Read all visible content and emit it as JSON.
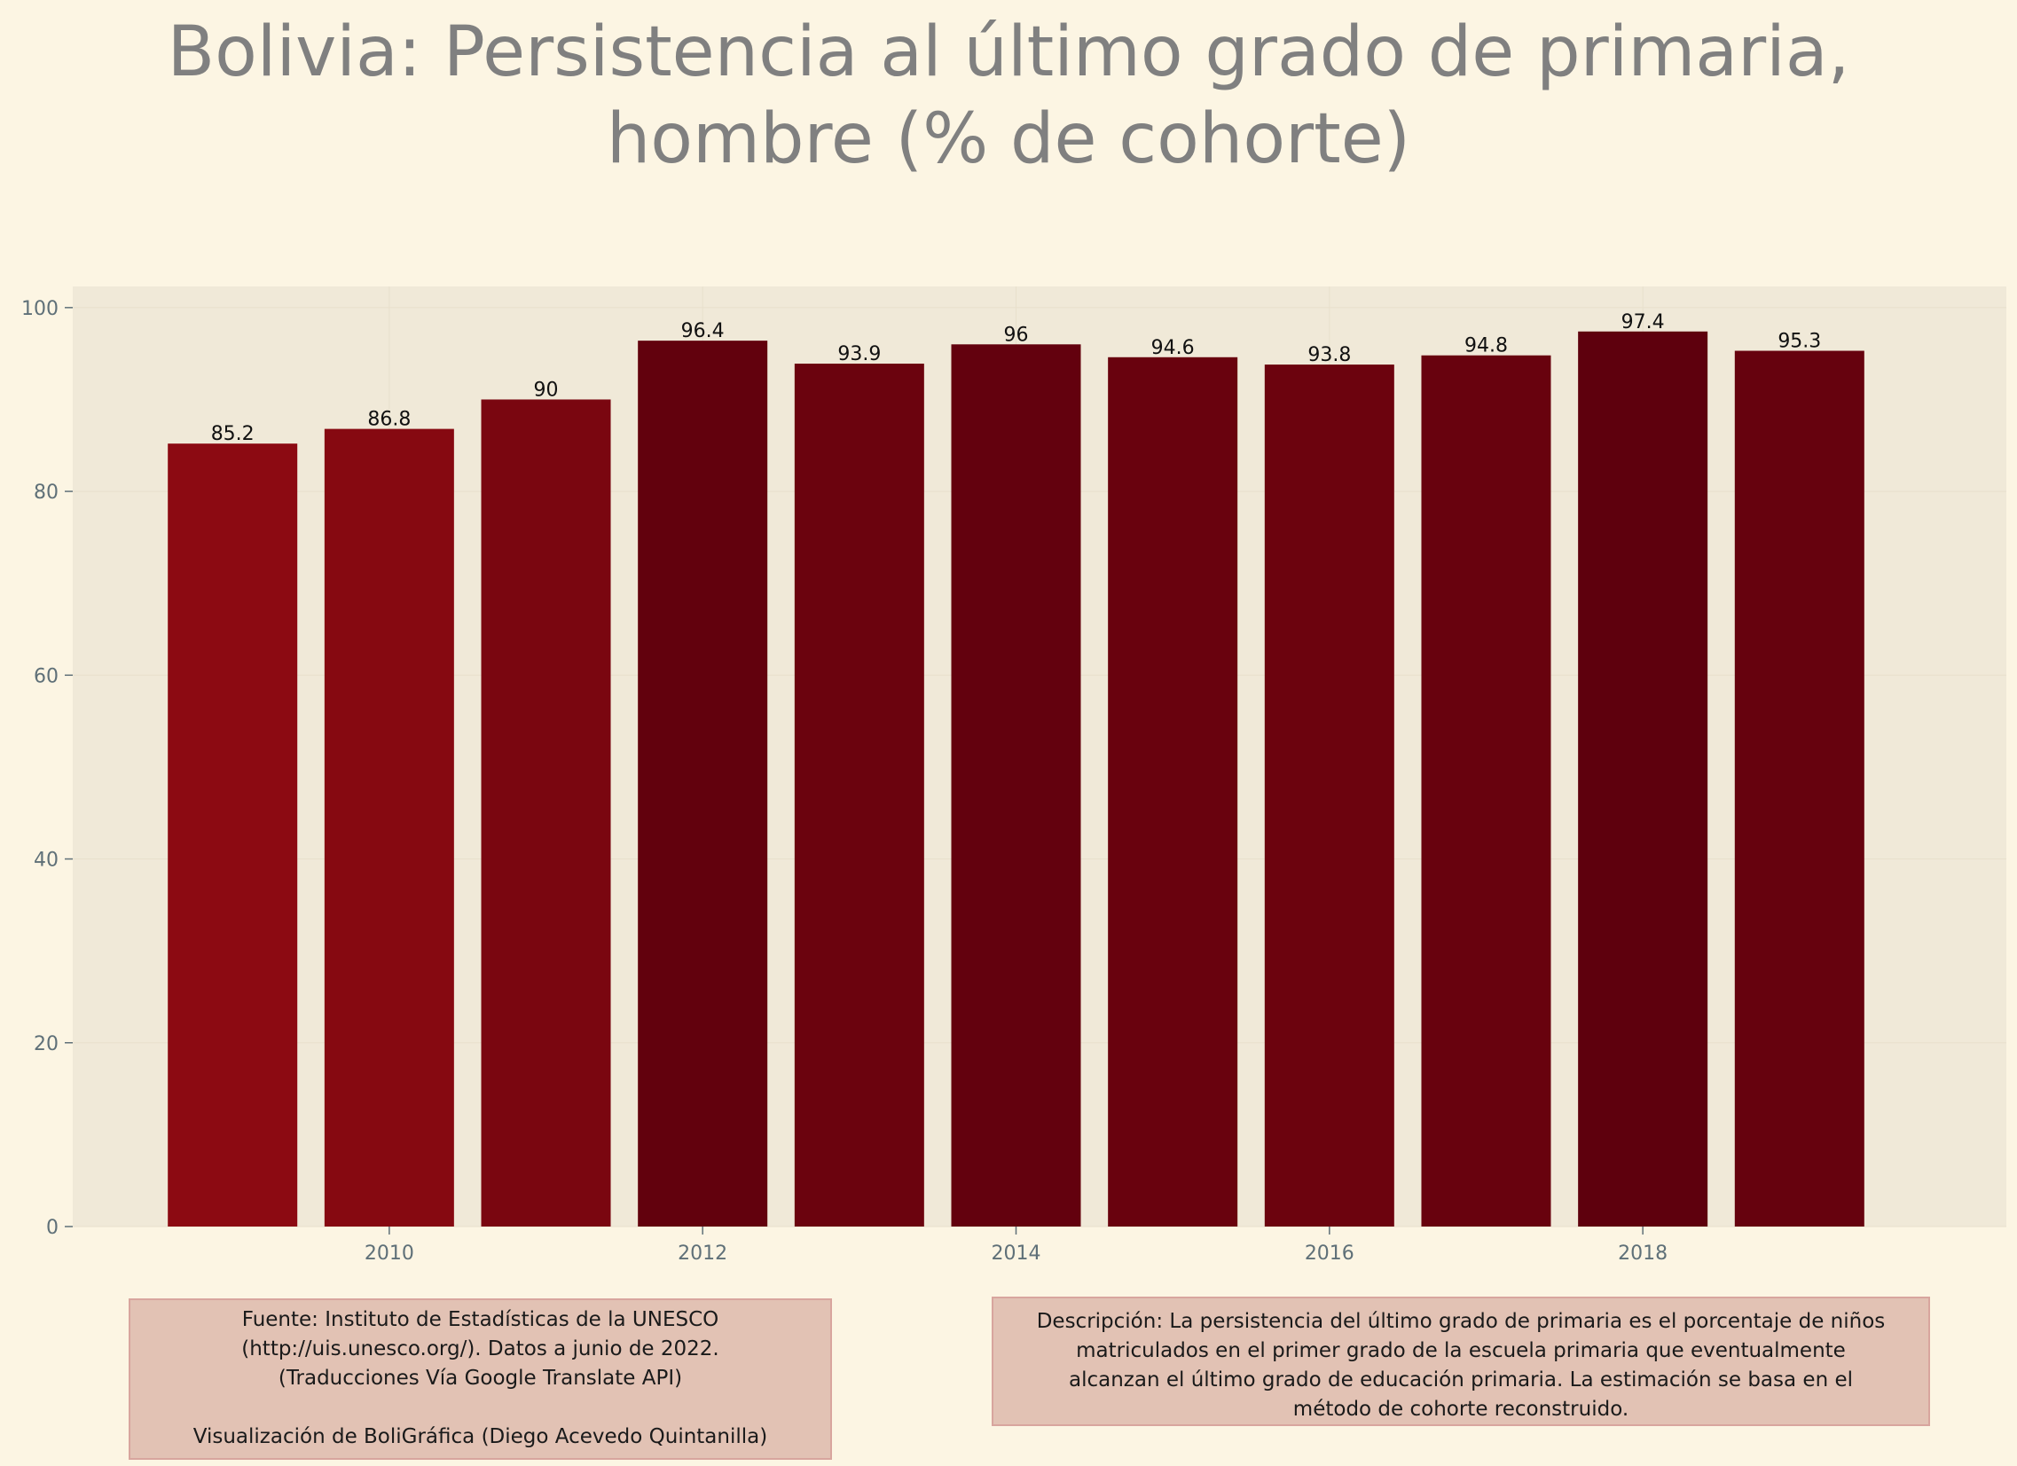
{
  "title_lines": [
    "Bolivia:  Persistencia al último grado de primaria,",
    "hombre (% de cohorte)"
  ],
  "chart_data": {
    "type": "bar",
    "title": "Bolivia:  Persistencia al último grado de primaria, hombre (% de cohorte)",
    "xlabel": "",
    "ylabel": "",
    "x": [
      2009,
      2010,
      2011,
      2012,
      2013,
      2014,
      2015,
      2016,
      2017,
      2018,
      2019
    ],
    "values": [
      85.2,
      86.8,
      90,
      96.4,
      93.9,
      96,
      94.6,
      93.8,
      94.8,
      97.4,
      95.3
    ],
    "value_labels": [
      "85.2",
      "86.8",
      "90",
      "96.4",
      "93.9",
      "96",
      "94.6",
      "93.8",
      "94.8",
      "97.4",
      "95.3"
    ],
    "x_ticks": [
      "2010",
      "2012",
      "2014",
      "2016",
      "2018"
    ],
    "x_tick_values": [
      2010,
      2012,
      2014,
      2016,
      2018
    ],
    "y_ticks": [
      "0",
      "20",
      "40",
      "60",
      "80",
      "100"
    ],
    "y_tick_values": [
      0,
      20,
      40,
      60,
      80,
      100
    ],
    "ylim": [
      0,
      102.3
    ],
    "xlim": [
      2007.98,
      2020.32
    ],
    "grid": true,
    "legend": "none",
    "colors": {
      "bar_low": "#8c0a12",
      "bar_high": "#5e000d",
      "plot_bg": "#f0e9d8",
      "page_bg": "#fcf5e3",
      "tick_text": "#5f7078",
      "label_text": "#111111"
    }
  },
  "source_box": {
    "lines": [
      "Fuente: Instituto de Estadísticas de la UNESCO",
      "(http://uis.unesco.org/). Datos a junio de 2022.",
      "(Traducciones Vía Google Translate API)"
    ],
    "credit": "Visualización de BoliGráfica (Diego Acevedo Quintanilla)"
  },
  "description_box": {
    "lines": [
      "Descripción: La persistencia del último grado de primaria es el porcentaje de niños",
      "matriculados en el primer grado de la escuela primaria que eventualmente",
      "alcanzan el último grado de educación primaria. La estimación se basa en el",
      "método de cohorte reconstruido."
    ]
  }
}
